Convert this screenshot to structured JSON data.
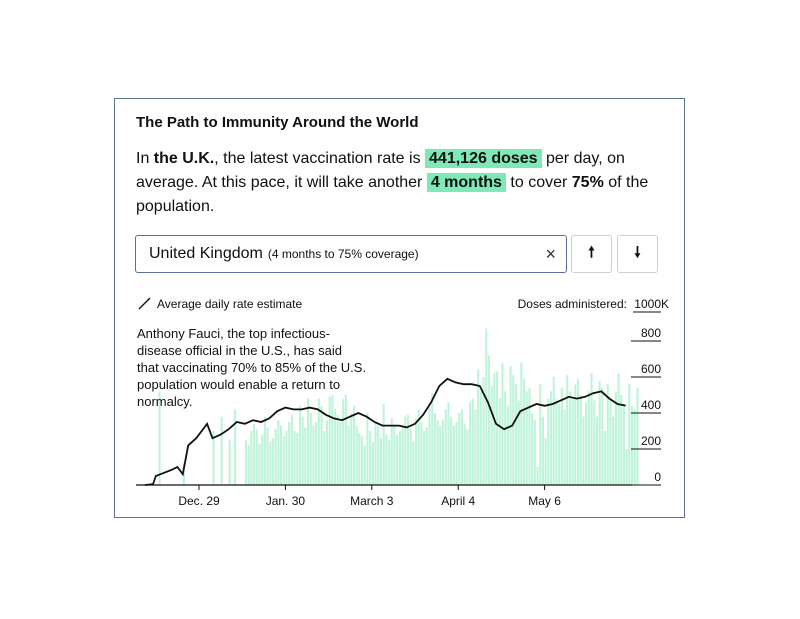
{
  "card": {
    "title": "The Path to Immunity Around the World",
    "summary": {
      "p1": "In ",
      "country": "the U.K.",
      "p2": ", the latest vaccination rate is ",
      "rate": "441,126 doses",
      "p3": " per day, on average. At this pace, it will take another ",
      "time": "4 months",
      "p4": " to cover ",
      "pct": "75%",
      "p5": " of the population."
    },
    "country_select": {
      "value": "United Kingdom",
      "subtext": "(4 months to 75% coverage)"
    },
    "clear_icon": "×",
    "up_button": "🠕",
    "down_button": "🠗",
    "annotation": "Anthony Fauci, the top infectious-disease official in the U.S., has said that vaccinating 70% to 85% of the U.S. population would enable a return to normalcy."
  },
  "chart_data": {
    "type": "bar",
    "legend": "Average daily rate estimate",
    "ylabel": "Doses administered:",
    "ylim": [
      0,
      1000
    ],
    "y_ticks": [
      "0",
      "200",
      "400",
      "600",
      "800",
      "1000K"
    ],
    "x_ticks": [
      "Dec. 29",
      "Jan. 30",
      "March 3",
      "April 4",
      "May 6"
    ],
    "grid": false,
    "colors": {
      "bars": "#bff3da",
      "line": "#111111"
    },
    "daily_doses": [
      0,
      0,
      0,
      0,
      0,
      520,
      0,
      0,
      0,
      0,
      0,
      0,
      0,
      0,
      120,
      0,
      0,
      0,
      0,
      0,
      0,
      0,
      0,
      0,
      0,
      300,
      0,
      0,
      380,
      0,
      0,
      250,
      0,
      420,
      0,
      0,
      0,
      250,
      220,
      300,
      340,
      310,
      230,
      280,
      380,
      320,
      240,
      260,
      310,
      360,
      330,
      270,
      300,
      350,
      390,
      300,
      290,
      440,
      380,
      320,
      480,
      400,
      330,
      350,
      480,
      440,
      300,
      360,
      490,
      500,
      420,
      390,
      350,
      480,
      500,
      330,
      400,
      440,
      330,
      290,
      270,
      220,
      400,
      300,
      240,
      350,
      330,
      260,
      450,
      280,
      250,
      370,
      330,
      280,
      300,
      320,
      380,
      390,
      310,
      240,
      370,
      420,
      350,
      300,
      320,
      430,
      510,
      400,
      360,
      330,
      360,
      420,
      460,
      380,
      330,
      350,
      400,
      420,
      340,
      310,
      460,
      480,
      420,
      640,
      520,
      600,
      870,
      720,
      550,
      620,
      630,
      480,
      680,
      520,
      440,
      660,
      610,
      560,
      470,
      680,
      590,
      520,
      540,
      400,
      360,
      100,
      560,
      380,
      260,
      480,
      520,
      600,
      480,
      450,
      540,
      420,
      610,
      520,
      480,
      560,
      590,
      500,
      380,
      460,
      520,
      620,
      470,
      380,
      580,
      540,
      300,
      560,
      480,
      380,
      520,
      620,
      500,
      450,
      200,
      560,
      440,
      420,
      540
    ],
    "average": [
      {
        "d": 0,
        "v": 0
      },
      {
        "d": 3,
        "v": 5
      },
      {
        "d": 4,
        "v": 50
      },
      {
        "d": 10,
        "v": 85
      },
      {
        "d": 12,
        "v": 100
      },
      {
        "d": 14,
        "v": 60
      },
      {
        "d": 16,
        "v": 220
      },
      {
        "d": 19,
        "v": 260
      },
      {
        "d": 23,
        "v": 340
      },
      {
        "d": 25,
        "v": 260
      },
      {
        "d": 28,
        "v": 280
      },
      {
        "d": 31,
        "v": 310
      },
      {
        "d": 34,
        "v": 350
      },
      {
        "d": 37,
        "v": 340
      },
      {
        "d": 40,
        "v": 360
      },
      {
        "d": 43,
        "v": 350
      },
      {
        "d": 46,
        "v": 370
      },
      {
        "d": 49,
        "v": 410
      },
      {
        "d": 52,
        "v": 430
      },
      {
        "d": 55,
        "v": 420
      },
      {
        "d": 58,
        "v": 420
      },
      {
        "d": 61,
        "v": 430
      },
      {
        "d": 64,
        "v": 420
      },
      {
        "d": 67,
        "v": 390
      },
      {
        "d": 70,
        "v": 370
      },
      {
        "d": 73,
        "v": 360
      },
      {
        "d": 76,
        "v": 380
      },
      {
        "d": 79,
        "v": 400
      },
      {
        "d": 82,
        "v": 380
      },
      {
        "d": 85,
        "v": 350
      },
      {
        "d": 88,
        "v": 330
      },
      {
        "d": 91,
        "v": 330
      },
      {
        "d": 94,
        "v": 330
      },
      {
        "d": 97,
        "v": 320
      },
      {
        "d": 100,
        "v": 340
      },
      {
        "d": 103,
        "v": 390
      },
      {
        "d": 106,
        "v": 460
      },
      {
        "d": 109,
        "v": 550
      },
      {
        "d": 112,
        "v": 590
      },
      {
        "d": 115,
        "v": 570
      },
      {
        "d": 118,
        "v": 560
      },
      {
        "d": 121,
        "v": 560
      },
      {
        "d": 124,
        "v": 550
      },
      {
        "d": 127,
        "v": 460
      },
      {
        "d": 130,
        "v": 340
      },
      {
        "d": 133,
        "v": 310
      },
      {
        "d": 136,
        "v": 330
      },
      {
        "d": 139,
        "v": 410
      },
      {
        "d": 142,
        "v": 430
      },
      {
        "d": 145,
        "v": 450
      },
      {
        "d": 148,
        "v": 440
      },
      {
        "d": 151,
        "v": 450
      },
      {
        "d": 154,
        "v": 470
      },
      {
        "d": 157,
        "v": 490
      },
      {
        "d": 160,
        "v": 480
      },
      {
        "d": 163,
        "v": 490
      },
      {
        "d": 166,
        "v": 510
      },
      {
        "d": 169,
        "v": 520
      },
      {
        "d": 172,
        "v": 480
      },
      {
        "d": 175,
        "v": 450
      },
      {
        "d": 178,
        "v": 441
      }
    ]
  }
}
